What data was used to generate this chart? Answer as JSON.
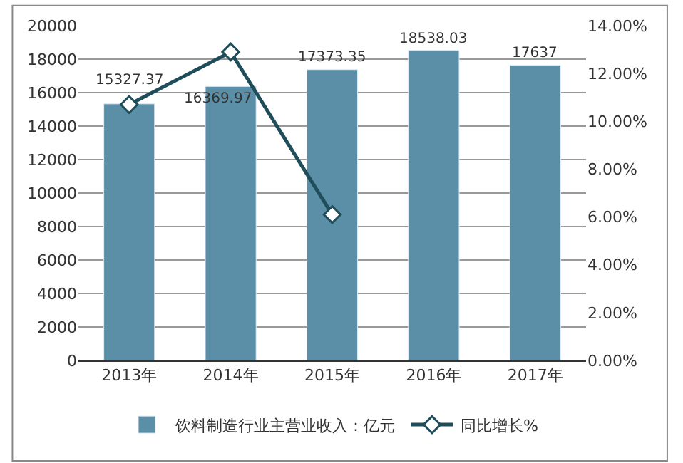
{
  "chart_data": {
    "type": "bar",
    "categories": [
      "2013年",
      "2014年",
      "2015年",
      "2016年",
      "2017年"
    ],
    "series": [
      {
        "name": "饮料制造行业主营业收入：亿元",
        "color": "#5b8fa8",
        "values": [
          15327.37,
          16369.97,
          17373.35,
          18538.03,
          17637
        ],
        "data_labels": true
      },
      {
        "name": "同比增长%",
        "type": "line",
        "axis": "y2",
        "color": "#1f4e5a",
        "marker": "diamond",
        "values": [
          10.7,
          12.9,
          6.1,
          null,
          null
        ]
      }
    ],
    "ylim": [
      0,
      20000
    ],
    "yticks": [
      0,
      2000,
      4000,
      6000,
      8000,
      10000,
      12000,
      14000,
      16000,
      18000,
      20000
    ],
    "y2lim": [
      0,
      14
    ],
    "y2ticks": [
      {
        "value": 0,
        "label": "0.00%"
      },
      {
        "value": 2,
        "label": "2.00%"
      },
      {
        "value": 4,
        "label": "4.00%"
      },
      {
        "value": 6,
        "label": "6.00%"
      },
      {
        "value": 8,
        "label": "8.00%"
      },
      {
        "value": 10,
        "label": "10.00%"
      },
      {
        "value": 12,
        "label": "12.00%"
      },
      {
        "value": 14,
        "label": "14.00%"
      }
    ],
    "grid": "y",
    "legend": "bottom"
  }
}
